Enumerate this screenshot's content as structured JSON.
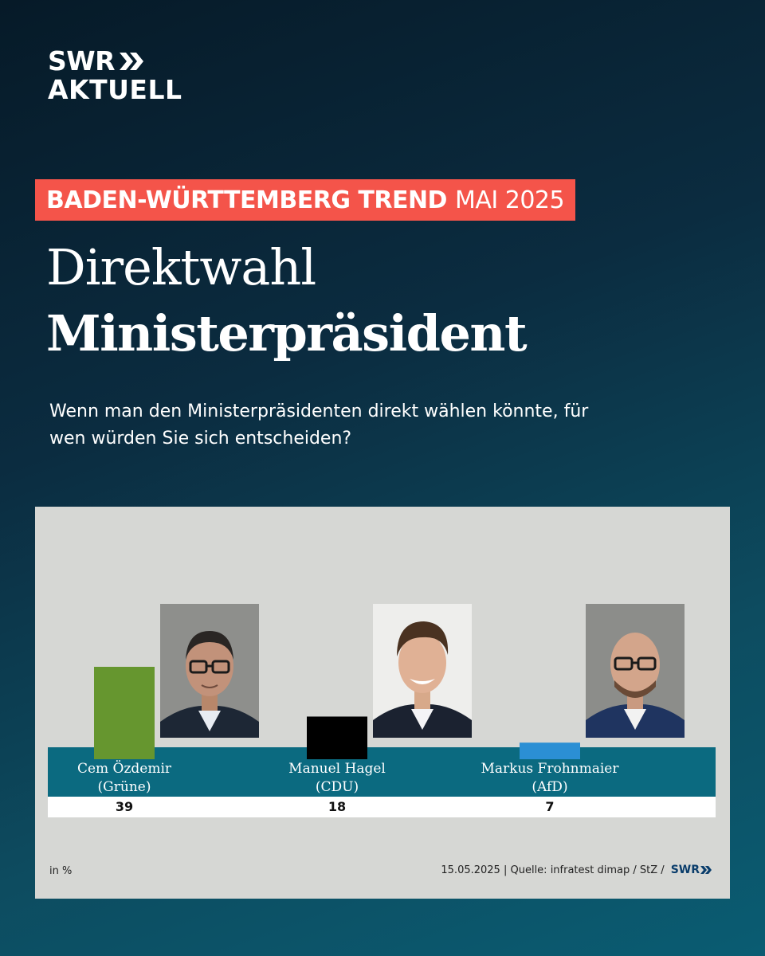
{
  "header": {
    "logo_top": "SWR",
    "logo_bottom": "AKTUELL",
    "tag_bold": "BADEN-WÜRTTEMBERG TREND",
    "tag_regular": "MAI 2025",
    "title_line1": "Direktwahl",
    "title_line2": "Ministerpräsident",
    "question": "Wenn man den Ministerpräsidenten direkt wählen könnte, für wen würden Sie sich entscheiden?"
  },
  "colors": {
    "tag": "#f4544a",
    "band": "#0b6a80",
    "gruene": "#66962f",
    "cdu": "#000000",
    "afd": "#2b8fd4"
  },
  "chart_data": {
    "type": "bar",
    "title": "Direktwahl Ministerpräsident",
    "unit_label": "in %",
    "ylim": [
      0,
      40
    ],
    "categories": [
      "Cem Özdemir (Grüne)",
      "Manuel Hagel (CDU)",
      "Markus Frohnmaier (AfD)"
    ],
    "values": [
      39,
      18,
      7
    ],
    "candidates": [
      {
        "name": "Cem Özdemir",
        "party": "(Grüne)",
        "value": 39,
        "value_label": "39",
        "color": "#66962f",
        "photo": "portrait-oezdemir"
      },
      {
        "name": "Manuel Hagel",
        "party": "(CDU)",
        "value": 18,
        "value_label": "18",
        "color": "#000000",
        "photo": "portrait-hagel"
      },
      {
        "name": "Markus Frohnmaier",
        "party": "(AfD)",
        "value": 7,
        "value_label": "7",
        "color": "#2b8fd4",
        "photo": "portrait-frohnmaier"
      }
    ]
  },
  "footer": {
    "unit": "in %",
    "date": "15.05.2025",
    "source": "Quelle: infratest dimap / StZ /",
    "brand": "SWR"
  }
}
